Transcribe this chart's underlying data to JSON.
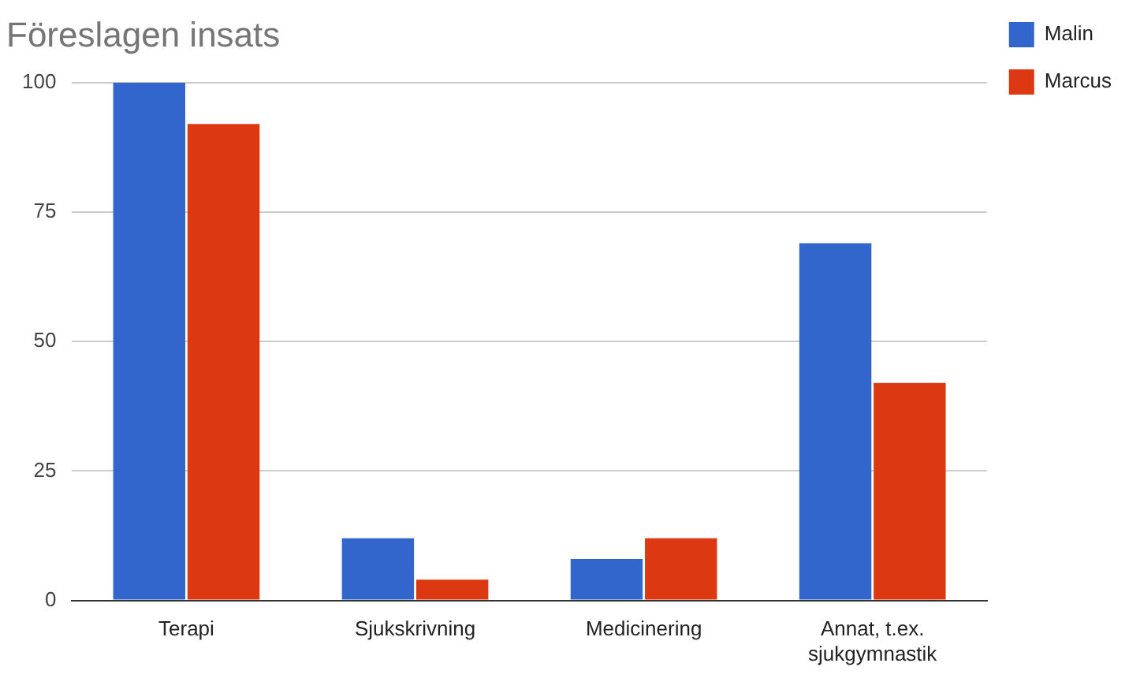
{
  "chart_data": {
    "type": "bar",
    "title": "Föreslagen insats",
    "categories": [
      "Terapi",
      "Sjukskrivning",
      "Medicinering",
      "Annat, t.ex. sjukgymnastik"
    ],
    "series": [
      {
        "name": "Malin",
        "color": "#3366cc",
        "values": [
          100,
          12,
          8,
          69
        ]
      },
      {
        "name": "Marcus",
        "color": "#dc3912",
        "values": [
          92,
          4,
          12,
          42
        ]
      }
    ],
    "ylim": [
      0,
      100
    ],
    "yticks": [
      0,
      25,
      50,
      75,
      100
    ],
    "grid": "y",
    "legend": "top right"
  }
}
